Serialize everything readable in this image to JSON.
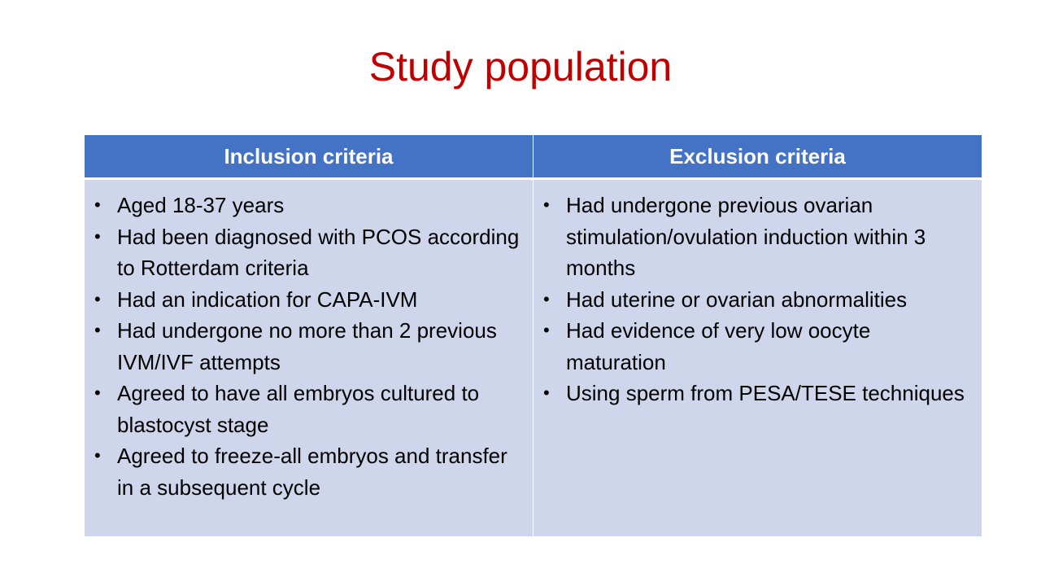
{
  "slide": {
    "title": "Study population"
  },
  "table": {
    "columns": [
      {
        "header": "Inclusion criteria",
        "items": [
          "Aged 18-37 years",
          "Had been diagnosed with PCOS according to Rotterdam criteria",
          "Had an indication for CAPA-IVM",
          "Had undergone no more than 2 previous IVM/IVF attempts",
          "Agreed to have all embryos cultured to blastocyst stage",
          "Agreed to freeze-all embryos and transfer in a subsequent cycle"
        ]
      },
      {
        "header": "Exclusion criteria",
        "items": [
          "Had undergone previous ovarian stimulation/ovulation induction within 3 months",
          "Had uterine or ovarian abnormalities",
          "Had evidence of very low oocyte maturation",
          "Using sperm from PESA/TESE techniques"
        ]
      }
    ]
  },
  "colors": {
    "title": "#c00000",
    "header_bg": "#4472c4",
    "body_bg": "#cfd5ea"
  }
}
